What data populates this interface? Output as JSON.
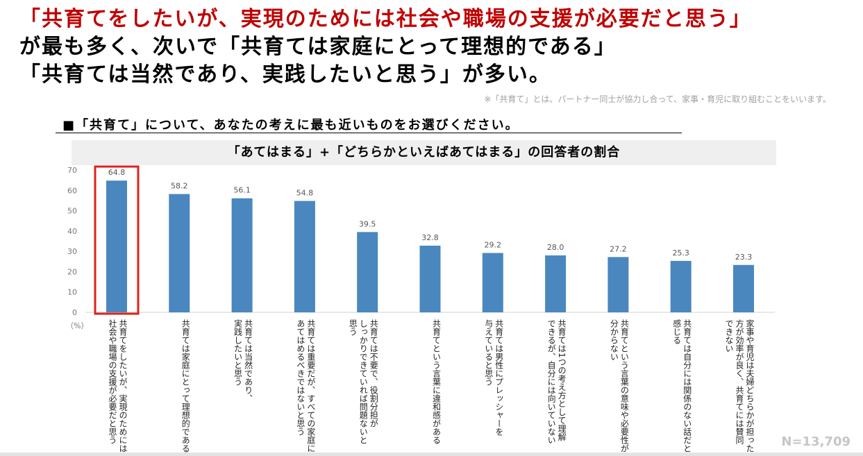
{
  "headline": {
    "line1": "「共育てをしたいが、実現のためには社会や職場の支援が必要だと思う」",
    "line2": "が最も多く、次いで「共育ては家庭にとって理想的である」",
    "line3": "「共育ては当然であり、実践したいと思う」が多い。"
  },
  "note": "※「共育て」とは、パートナー同士が協力し合って、家事・育児に取り組むことをいいます。",
  "question": "■「共育て」について、あなたの考えに最も近いものをお選びください。",
  "n_label": "N=13,709",
  "chart_data": {
    "type": "bar",
    "title": "「あてはまる」+「どちらかといえばあてはまる」の回答者の割合",
    "ylabel": "（%）",
    "ylim": [
      0,
      70
    ],
    "yticks": [
      "70",
      "60",
      "50",
      "40",
      "30",
      "20",
      "10",
      "0"
    ],
    "highlight_index": 0,
    "bar_color": "#4a87bf",
    "highlight_color": "#e0201e",
    "categories": [
      [
        "共育てをしたいが、実現のためには",
        "社会や職場の支援が必要だと思う"
      ],
      [
        "共育ては家庭にとって理想的である"
      ],
      [
        "共育ては当然であり、",
        "実践したいと思う"
      ],
      [
        "共育ては重要だが、すべての家庭に",
        "あてはめるべきではないと思う"
      ],
      [
        "共育ては不要で、役割分担が",
        "しっかりできていれば問題ないと",
        "思う"
      ],
      [
        "共育てという言葉に違和感がある"
      ],
      [
        "共育ては男性にプレッシャーを",
        "与えていると思う"
      ],
      [
        "共育ては1つの考え方として理解",
        "できるが、自分には向いていない"
      ],
      [
        "共育てという言葉の意味や必要性が",
        "分からない"
      ],
      [
        "共育ては自分には関係のない話だと",
        "感じる"
      ],
      [
        "家事や育児は夫婦どちらかが担った",
        "方が効率が良く、共育てには賛同",
        "できない"
      ]
    ],
    "values": [
      64.8,
      58.2,
      56.1,
      54.8,
      39.5,
      32.8,
      29.2,
      28.0,
      27.2,
      25.3,
      23.3
    ],
    "value_labels": [
      "64.8",
      "58.2",
      "56.1",
      "54.8",
      "39.5",
      "32.8",
      "29.2",
      "28.0",
      "27.2",
      "25.3",
      "23.3"
    ]
  }
}
